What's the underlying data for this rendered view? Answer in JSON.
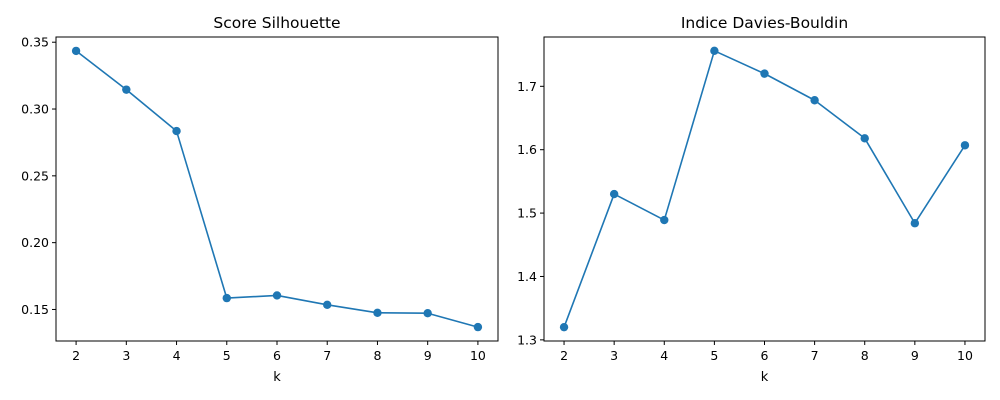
{
  "chart_data": [
    {
      "type": "line",
      "title": "Score Silhouette",
      "xlabel": "k",
      "ylabel": "",
      "x": [
        2,
        3,
        4,
        5,
        6,
        7,
        8,
        9,
        10
      ],
      "series": [
        {
          "values": [
            0.3435,
            0.3145,
            0.2835,
            0.1585,
            0.1605,
            0.1535,
            0.1475,
            0.1472,
            0.1368
          ],
          "color": "#1f77b4",
          "marker": "circle"
        }
      ],
      "xlim": [
        1.6,
        10.4
      ],
      "ylim": [
        0.1264,
        0.3539
      ],
      "xticks": [
        2,
        3,
        4,
        5,
        6,
        7,
        8,
        9,
        10
      ],
      "yticks": [
        0.15,
        0.2,
        0.25,
        0.3,
        0.35
      ],
      "ytick_labels": [
        "0.15",
        "0.20",
        "0.25",
        "0.30",
        "0.35"
      ],
      "grid": false,
      "legend": "none"
    },
    {
      "type": "line",
      "title": "Indice Davies-Bouldin",
      "xlabel": "k",
      "ylabel": "",
      "x": [
        2,
        3,
        4,
        5,
        6,
        7,
        8,
        9,
        10
      ],
      "series": [
        {
          "values": [
            1.32,
            1.53,
            1.489,
            1.756,
            1.72,
            1.678,
            1.618,
            1.484,
            1.607
          ],
          "color": "#1f77b4",
          "marker": "circle"
        }
      ],
      "xlim": [
        1.6,
        10.4
      ],
      "ylim": [
        1.2982,
        1.7778
      ],
      "xticks": [
        2,
        3,
        4,
        5,
        6,
        7,
        8,
        9,
        10
      ],
      "yticks": [
        1.3,
        1.4,
        1.5,
        1.6,
        1.7
      ],
      "ytick_labels": [
        "1.3",
        "1.4",
        "1.5",
        "1.6",
        "1.7"
      ],
      "grid": false,
      "legend": "none"
    }
  ]
}
